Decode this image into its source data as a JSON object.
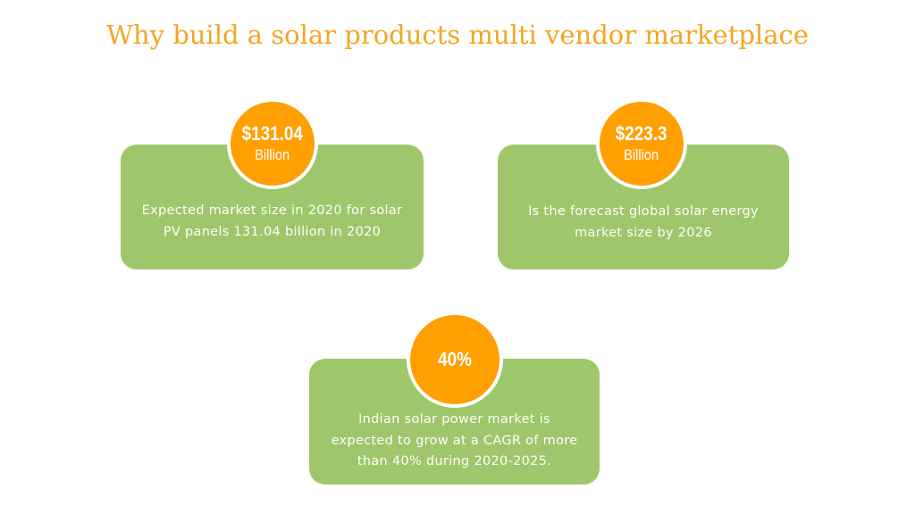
{
  "slide": {
    "title": "Why build a solar products multi vendor marketplace"
  },
  "colors": {
    "title": "#f5a623",
    "card": "#9dc76a",
    "circle": "#ffa000",
    "text_on_color": "#ffffff"
  },
  "stats": [
    {
      "value": "$131.04",
      "unit": "Billion",
      "description_line1": "Expected market size in 2020 for solar",
      "description_line2": "PV panels 131.04 billion in 2020"
    },
    {
      "value": "$223.3",
      "unit": "Billion",
      "description_line1": "Is the forecast global solar energy",
      "description_line2": "market size by 2026"
    },
    {
      "value": "40%",
      "unit": "",
      "description_line1": "Indian solar power market is",
      "description_line2": "expected to grow at a CAGR of more",
      "description_line3": "than 40% during 2020-2025."
    }
  ]
}
